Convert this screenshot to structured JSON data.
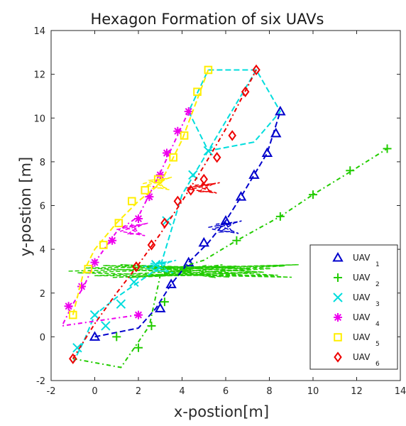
{
  "chart_data": {
    "type": "line",
    "title": "Hexagon Formation of six UAVs",
    "xlabel": "x-postion[m]",
    "ylabel": "y-postion [m]",
    "xlim": [
      -2,
      14
    ],
    "ylim": [
      -2,
      14
    ],
    "xticks": [
      -2,
      0,
      2,
      4,
      6,
      8,
      10,
      12,
      14
    ],
    "yticks": [
      -2,
      0,
      2,
      4,
      6,
      8,
      10,
      12,
      14
    ],
    "grid": false,
    "legend_position": "bottom-right",
    "final_formation_path": [
      [
        5.2,
        12.2
      ],
      [
        7.4,
        12.2
      ],
      [
        8.5,
        10.3
      ],
      [
        7.3,
        8.9
      ],
      [
        5.2,
        8.5
      ],
      [
        4.3,
        10.3
      ],
      [
        5.2,
        12.2
      ]
    ],
    "series": [
      {
        "name": "UAV",
        "subscript": "1",
        "color": "#0000cc",
        "marker": "triangle",
        "x": [
          0.0,
          2.0,
          2.8,
          3.5,
          4.3,
          5.2,
          6.0,
          6.7,
          7.3,
          7.9,
          8.5
        ],
        "y": [
          0.0,
          0.4,
          1.3,
          2.4,
          3.4,
          4.3,
          5.3,
          6.4,
          7.4,
          8.4,
          10.3
        ],
        "marker_x": [
          0.0,
          3.0,
          3.5,
          4.3,
          5.0,
          6.0,
          6.7,
          7.3,
          7.9,
          8.3,
          8.5
        ],
        "marker_y": [
          0.0,
          1.3,
          2.4,
          3.4,
          4.3,
          5.3,
          6.4,
          7.4,
          8.4,
          9.3,
          10.3
        ]
      },
      {
        "name": "UAV",
        "subscript": "2",
        "color": "#22cc00",
        "marker": "plus",
        "x": [
          -1.0,
          1.2,
          2.5,
          3.0,
          4.0,
          5.0,
          6.5,
          8.5,
          10.0,
          11.8,
          13.4
        ],
        "y": [
          -1.0,
          -1.4,
          0.5,
          2.8,
          3.2,
          3.5,
          4.4,
          5.5,
          6.5,
          7.6,
          8.6
        ],
        "marker_x": [
          1.0,
          2.0,
          2.6,
          3.2,
          6.5,
          8.5,
          10.0,
          11.7,
          13.4
        ],
        "marker_y": [
          0.0,
          -0.5,
          0.5,
          1.6,
          4.4,
          5.5,
          6.5,
          7.6,
          8.6
        ]
      },
      {
        "name": "UAV",
        "subscript": "3",
        "color": "#00dddd",
        "marker": "x",
        "x": [
          -1.0,
          -0.5,
          0.0,
          1.0,
          2.0,
          3.0,
          4.0,
          5.2,
          7.4
        ],
        "y": [
          -1.2,
          -0.2,
          1.0,
          1.8,
          2.5,
          3.2,
          6.5,
          8.5,
          12.2
        ],
        "marker_x": [
          -0.8,
          0.0,
          0.5,
          1.2,
          1.8,
          2.8,
          3.3,
          4.5,
          5.2
        ],
        "marker_y": [
          -0.5,
          1.0,
          0.5,
          1.5,
          2.5,
          3.3,
          5.3,
          7.4,
          8.5
        ]
      },
      {
        "name": "UAV",
        "subscript": "4",
        "color": "#ee00ee",
        "marker": "asterisk",
        "x": [
          2.0,
          -1.5,
          -1.0,
          -0.5,
          0.0,
          1.0,
          2.0,
          3.0,
          4.3
        ],
        "y": [
          1.0,
          0.5,
          1.5,
          2.3,
          3.4,
          4.8,
          5.5,
          7.5,
          10.3
        ],
        "marker_x": [
          2.0,
          -1.2,
          -0.6,
          0.0,
          0.8,
          2.0,
          2.5,
          3.0,
          3.3,
          3.8,
          4.3
        ],
        "marker_y": [
          1.0,
          1.4,
          2.3,
          3.4,
          4.4,
          5.4,
          6.4,
          7.4,
          8.4,
          9.4,
          10.3
        ]
      },
      {
        "name": "UAV",
        "subscript": "5",
        "color": "#ffee00",
        "marker": "square",
        "x": [
          -1.0,
          -0.5,
          0.0,
          1.0,
          2.0,
          3.0,
          4.0,
          5.2
        ],
        "y": [
          1.0,
          3.0,
          4.0,
          5.2,
          6.2,
          7.0,
          9.0,
          12.2
        ],
        "marker_x": [
          -1.0,
          -0.3,
          0.4,
          1.1,
          1.7,
          2.3,
          2.9,
          3.6,
          4.1,
          4.7,
          5.2
        ],
        "marker_y": [
          1.0,
          3.1,
          4.2,
          5.2,
          6.2,
          6.7,
          7.2,
          8.2,
          9.2,
          11.2,
          12.2
        ]
      },
      {
        "name": "UAV",
        "subscript": "6",
        "color": "#ee0000",
        "marker": "diamond",
        "x": [
          -1.0,
          0.0,
          1.0,
          2.0,
          3.0,
          4.0,
          5.0,
          6.0,
          7.4
        ],
        "y": [
          -1.0,
          0.6,
          2.0,
          3.3,
          4.7,
          6.2,
          7.8,
          9.5,
          12.2
        ],
        "marker_x": [
          -1.0,
          1.9,
          2.6,
          3.2,
          3.8,
          4.4,
          5.0,
          5.6,
          6.3,
          6.9,
          7.4
        ],
        "marker_y": [
          -1.0,
          3.2,
          4.2,
          5.2,
          6.2,
          6.7,
          7.2,
          8.2,
          9.2,
          11.2,
          12.2
        ]
      }
    ]
  }
}
